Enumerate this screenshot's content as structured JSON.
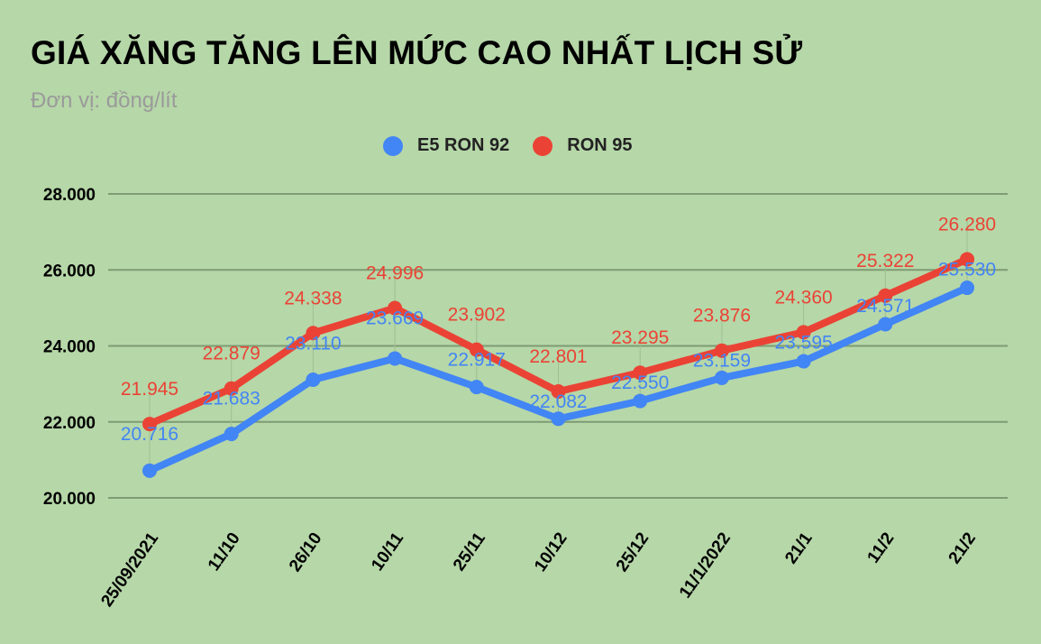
{
  "chart_data": {
    "type": "line",
    "title": "GIÁ XĂNG TĂNG LÊN MỨC CAO NHẤT LỊCH SỬ",
    "subtitle": "Đơn vị: đồng/lít",
    "xlabel": "",
    "ylabel": "",
    "ylim": [
      20000,
      28000
    ],
    "yticks": [
      "20.000",
      "22.000",
      "24.000",
      "26.000",
      "28.000"
    ],
    "grid": true,
    "legend_position": "top",
    "categories": [
      "25/09/2021",
      "11/10",
      "26/10",
      "10/11",
      "25/11",
      "10/12",
      "25/12",
      "11/1/2022",
      "21/1",
      "11/2",
      "21/2"
    ],
    "series": [
      {
        "name": "E5 RON 92",
        "color": "#4285f4",
        "values": [
          20716,
          21683,
          23110,
          23669,
          22917,
          22082,
          22550,
          23159,
          23595,
          24571,
          25530
        ],
        "labels": [
          "20.716",
          "21.683",
          "23.110",
          "23.669",
          "22.917",
          "22.082",
          "22.550",
          "23.159",
          "23.595",
          "24.571",
          "25.530"
        ]
      },
      {
        "name": "RON 95",
        "color": "#ea4335",
        "values": [
          21945,
          22879,
          24338,
          24996,
          23902,
          22801,
          23295,
          23876,
          24360,
          25322,
          26280
        ],
        "labels": [
          "21.945",
          "22.879",
          "24.338",
          "24.996",
          "23.902",
          "22.801",
          "23.295",
          "23.876",
          "24.360",
          "25.322",
          "26.280"
        ]
      }
    ]
  }
}
